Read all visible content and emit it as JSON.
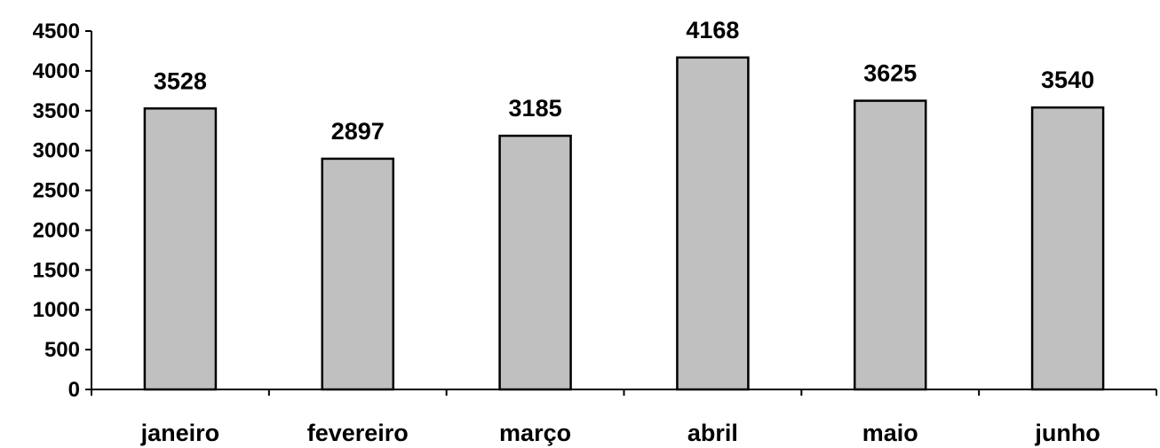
{
  "chart_data": {
    "type": "bar",
    "categories": [
      "janeiro",
      "fevereiro",
      "março",
      "abril",
      "maio",
      "junho"
    ],
    "values": [
      3528,
      2897,
      3185,
      4168,
      3625,
      3540
    ],
    "data_labels": [
      "3528",
      "2897",
      "3185",
      "4168",
      "3625",
      "3540"
    ],
    "title": "",
    "xlabel": "",
    "ylabel": "",
    "ylim": [
      0,
      4500
    ],
    "yticks": [
      0,
      500,
      1000,
      1500,
      2000,
      2500,
      3000,
      3500,
      4000,
      4500
    ],
    "ytick_labels": [
      "0",
      "500",
      "1000",
      "1500",
      "2000",
      "2500",
      "3000",
      "3500",
      "4000",
      "4500"
    ],
    "grid": false,
    "legend": "none",
    "bar_color": "#c0c0c0",
    "bar_edge_color": "#000000"
  }
}
